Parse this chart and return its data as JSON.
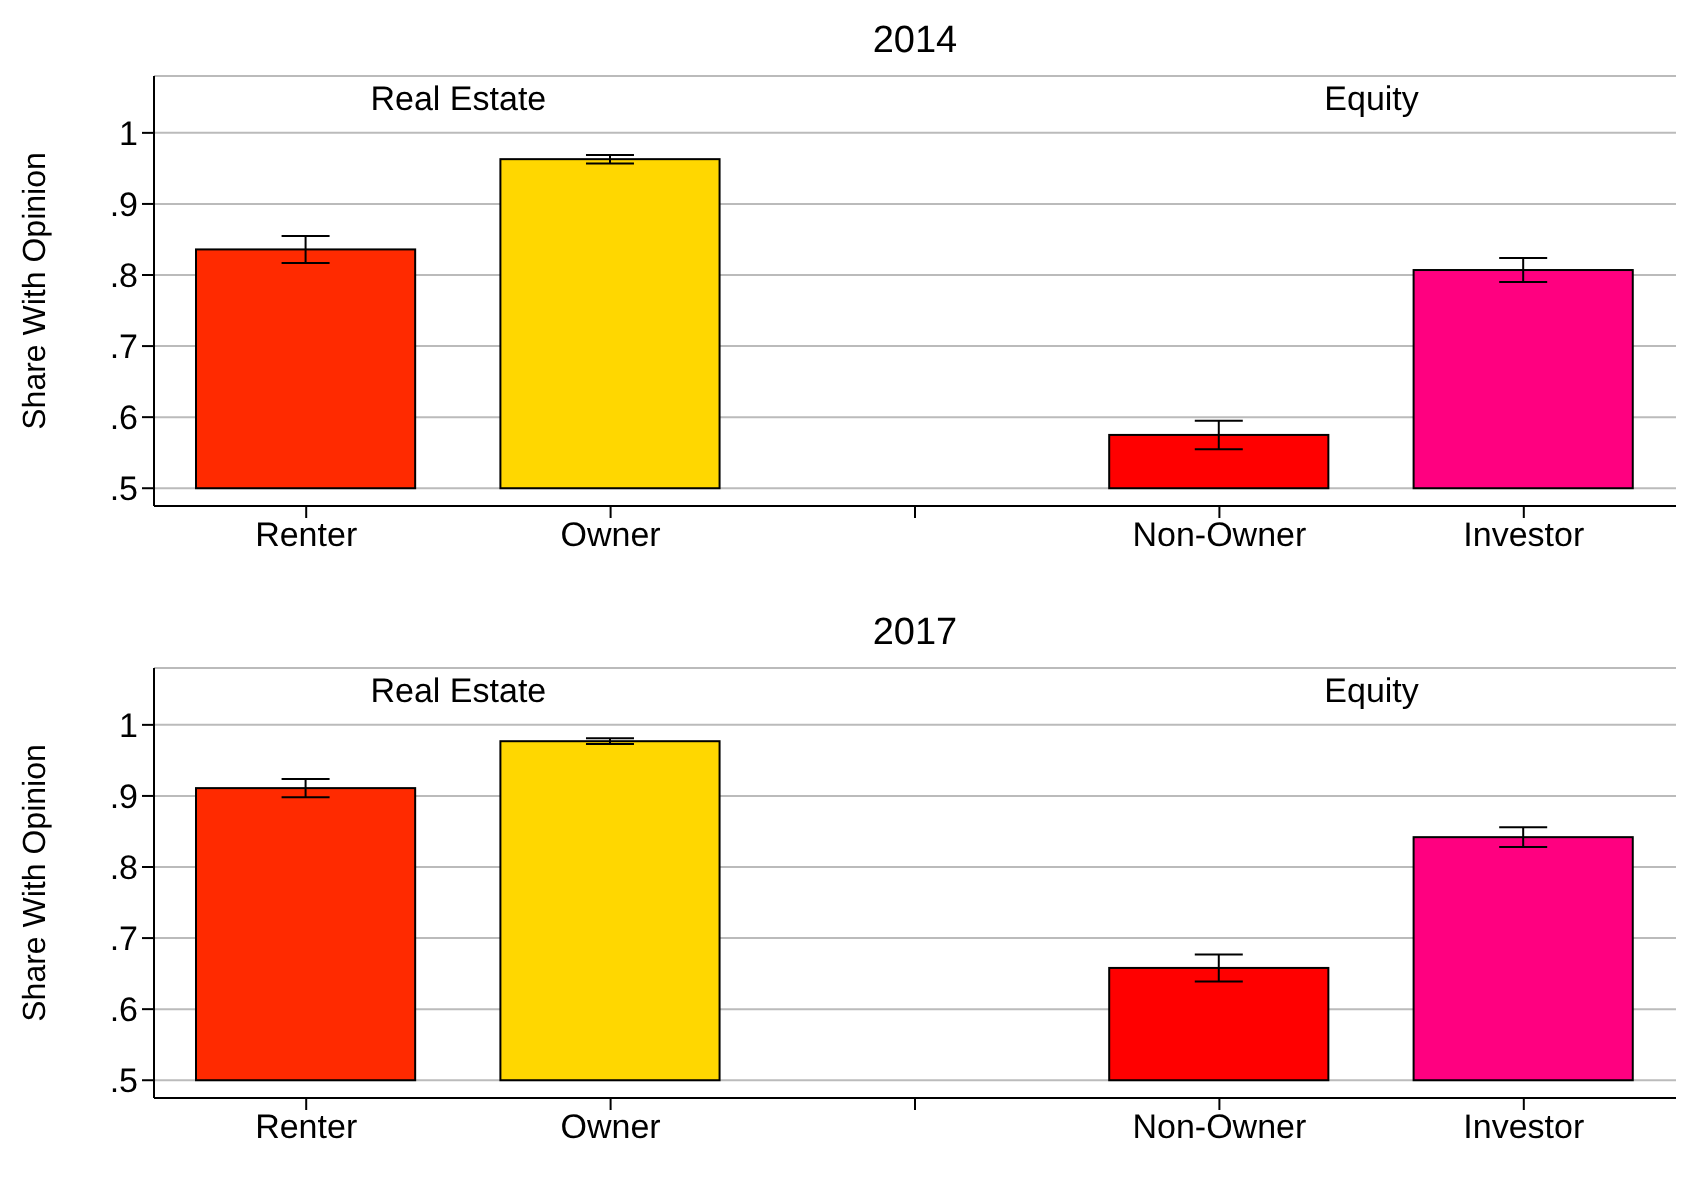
{
  "chart_data": [
    {
      "type": "bar",
      "title": "2014",
      "ylabel": "Share With Opinion",
      "annotations": [
        "Real Estate",
        "Equity"
      ],
      "categories": [
        "Renter",
        "Owner",
        null,
        "Non-Owner",
        "Investor"
      ],
      "base": [
        0.5,
        0.5,
        null,
        0.5,
        0.5
      ],
      "values": [
        0.336,
        0.463,
        null,
        0.075,
        0.307
      ],
      "errors": [
        0.019,
        0.006,
        null,
        0.02,
        0.017
      ],
      "colors": [
        "#ff2a00",
        "#ffd700",
        null,
        "#ff0000",
        "#ff0080"
      ],
      "ylim": [
        0.475,
        1.08
      ],
      "yticks": [
        {
          "value": 0.5,
          "label": ".5"
        },
        {
          "value": 0.6,
          "label": ".6"
        },
        {
          "value": 0.7,
          "label": ".7"
        },
        {
          "value": 0.8,
          "label": ".8"
        },
        {
          "value": 0.9,
          "label": ".9"
        },
        1
      ],
      "grid": "y"
    },
    {
      "type": "bar",
      "title": "2017",
      "ylabel": "Share With Opinion",
      "annotations": [
        "Real Estate",
        "Equity"
      ],
      "categories": [
        "Renter",
        "Owner",
        null,
        "Non-Owner",
        "Investor"
      ],
      "base": [
        0.5,
        0.5,
        null,
        0.5,
        0.5
      ],
      "values": [
        0.411,
        0.477,
        null,
        0.158,
        0.342
      ],
      "errors": [
        0.013,
        0.004,
        null,
        0.019,
        0.014
      ],
      "colors": [
        "#ff2a00",
        "#ffd700",
        null,
        "#ff0000",
        "#ff0080"
      ],
      "ylim": [
        0.475,
        1.08
      ],
      "yticks": [
        {
          "value": 0.5,
          "label": ".5"
        },
        {
          "value": 0.6,
          "label": ".6"
        },
        {
          "value": 0.7,
          "label": ".7"
        },
        {
          "value": 0.8,
          "label": ".8"
        },
        {
          "value": 0.9,
          "label": ".9"
        },
        1
      ],
      "grid": "y"
    }
  ]
}
